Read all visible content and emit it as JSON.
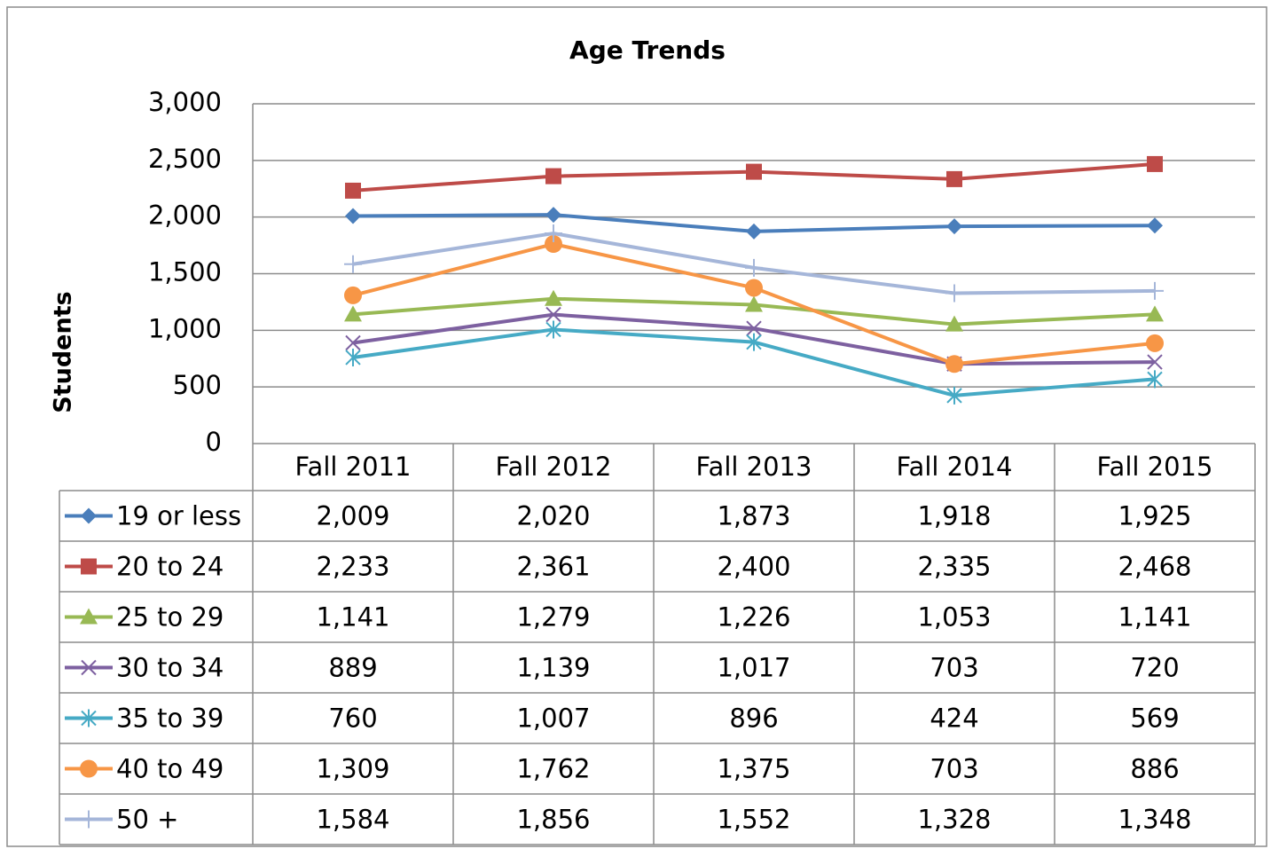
{
  "chart_data": {
    "type": "line",
    "title": "Age Trends",
    "y_label": "Students",
    "categories": [
      "Fall 2011",
      "Fall 2012",
      "Fall 2013",
      "Fall 2014",
      "Fall 2015"
    ],
    "ylim": [
      0,
      3000
    ],
    "yticks": [
      0,
      500,
      {
        "value": 1000,
        "label": "1,000"
      },
      {
        "value": 1500,
        "label": "1,500"
      },
      {
        "value": 2000,
        "label": "2,000"
      },
      {
        "value": 2500,
        "label": "2,500"
      },
      {
        "value": 3000,
        "label": "3,000"
      }
    ],
    "grid": true,
    "series": [
      {
        "name": "19 or less",
        "color": "#4a7ebb",
        "marker": "diamond",
        "values": [
          2009,
          2020,
          1873,
          1918,
          1925
        ],
        "value_labels": [
          "2,009",
          "2,020",
          "1,873",
          "1,918",
          "1,925"
        ]
      },
      {
        "name": "20 to 24",
        "color": "#be4b48",
        "marker": "square",
        "values": [
          2233,
          2361,
          2400,
          2335,
          2468
        ],
        "value_labels": [
          "2,233",
          "2,361",
          "2,400",
          "2,335",
          "2,468"
        ]
      },
      {
        "name": "25 to 29",
        "color": "#98b954",
        "marker": "triangle",
        "values": [
          1141,
          1279,
          1226,
          1053,
          1141
        ],
        "value_labels": [
          "1,141",
          "1,279",
          "1,226",
          "1,053",
          "1,141"
        ]
      },
      {
        "name": "30 to 34",
        "color": "#7d60a0",
        "marker": "x",
        "values": [
          889,
          1139,
          1017,
          703,
          720
        ],
        "value_labels": [
          "889",
          "1,139",
          "1,017",
          "703",
          "720"
        ]
      },
      {
        "name": "35 to 39",
        "color": "#46aac5",
        "marker": "asterisk",
        "values": [
          760,
          1007,
          896,
          424,
          569
        ],
        "value_labels": [
          "760",
          "1,007",
          "896",
          "424",
          "569"
        ]
      },
      {
        "name": "40 to 49",
        "color": "#f79646",
        "marker": "circle",
        "values": [
          1309,
          1762,
          1375,
          703,
          886
        ],
        "value_labels": [
          "1,309",
          "1,762",
          "1,375",
          "703",
          "886"
        ]
      },
      {
        "name": "50 +",
        "color": "#a5b6d9",
        "marker": "plus",
        "values": [
          1584,
          1856,
          1552,
          1328,
          1348
        ],
        "value_labels": [
          "1,584",
          "1,856",
          "1,552",
          "1,328",
          "1,348"
        ]
      }
    ]
  }
}
